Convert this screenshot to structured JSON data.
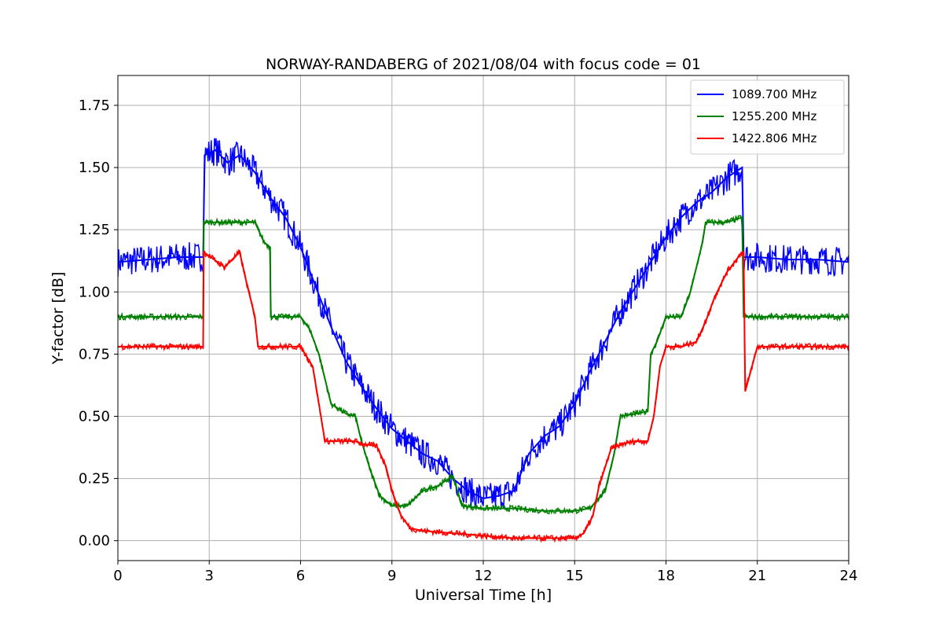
{
  "chart_data": {
    "type": "line",
    "title": "NORWAY-RANDABERG of 2021/08/04 with focus code = 01",
    "xlabel": "Universal Time [h]",
    "ylabel": "Y-factor [dB]",
    "xlim": [
      0,
      24
    ],
    "ylim": [
      -0.08,
      1.87
    ],
    "xticks": [
      0,
      3,
      6,
      9,
      12,
      15,
      18,
      21,
      24
    ],
    "xtick_labels": [
      "0",
      "3",
      "6",
      "9",
      "12",
      "15",
      "18",
      "21",
      "24"
    ],
    "yticks": [
      0.0,
      0.25,
      0.5,
      0.75,
      1.0,
      1.25,
      1.5,
      1.75
    ],
    "ytick_labels": [
      "0.00",
      "0.25",
      "0.50",
      "0.75",
      "1.00",
      "1.25",
      "1.50",
      "1.75"
    ],
    "grid": true,
    "legend_position": "top-right",
    "series": [
      {
        "name": "1089.700 MHz",
        "color": "#0000ff",
        "x": [
          0,
          1,
          2,
          2.8,
          2.85,
          3.2,
          3.6,
          4,
          4.5,
          5,
          5.5,
          6,
          6.5,
          7,
          7.5,
          8,
          8.5,
          9,
          9.5,
          10,
          10.5,
          11,
          11.5,
          12,
          12.5,
          13,
          13.5,
          14,
          14.5,
          15,
          15.5,
          16,
          16.5,
          17,
          17.5,
          18,
          18.5,
          19,
          19.5,
          20,
          20.5,
          20.55,
          21,
          22,
          23,
          24
        ],
        "y": [
          1.12,
          1.13,
          1.14,
          1.14,
          1.55,
          1.57,
          1.52,
          1.55,
          1.48,
          1.38,
          1.3,
          1.18,
          1.02,
          0.86,
          0.72,
          0.62,
          0.53,
          0.45,
          0.4,
          0.35,
          0.32,
          0.25,
          0.2,
          0.17,
          0.18,
          0.2,
          0.35,
          0.42,
          0.46,
          0.55,
          0.68,
          0.8,
          0.92,
          1.02,
          1.12,
          1.22,
          1.3,
          1.36,
          1.4,
          1.46,
          1.5,
          1.14,
          1.14,
          1.13,
          1.13,
          1.12
        ]
      },
      {
        "name": "1255.200 MHz",
        "color": "#008000",
        "x": [
          0,
          2.8,
          2.82,
          4.5,
          4.8,
          5.0,
          5.02,
          6.0,
          6.3,
          6.6,
          7.0,
          7.5,
          7.8,
          8.0,
          8.3,
          8.6,
          9.0,
          9.5,
          10.0,
          10.5,
          11.0,
          11.3,
          12.0,
          13.0,
          14.0,
          15.0,
          15.5,
          16.0,
          16.3,
          16.5,
          17.0,
          17.4,
          17.5,
          17.7,
          18.0,
          18.5,
          18.8,
          19.0,
          19.2,
          19.3,
          20.0,
          20.5,
          20.55,
          21,
          24
        ],
        "y": [
          0.9,
          0.9,
          1.28,
          1.28,
          1.2,
          1.18,
          0.9,
          0.9,
          0.85,
          0.75,
          0.55,
          0.51,
          0.5,
          0.4,
          0.28,
          0.18,
          0.14,
          0.14,
          0.2,
          0.22,
          0.26,
          0.14,
          0.13,
          0.13,
          0.12,
          0.12,
          0.13,
          0.2,
          0.35,
          0.5,
          0.51,
          0.52,
          0.75,
          0.8,
          0.9,
          0.9,
          1.0,
          1.1,
          1.2,
          1.28,
          1.28,
          1.3,
          0.9,
          0.9,
          0.9
        ]
      },
      {
        "name": "1422.806 MHz",
        "color": "#ff0000",
        "x": [
          0,
          2.8,
          2.82,
          3.5,
          4.0,
          4.2,
          4.5,
          4.6,
          5.0,
          6.0,
          6.4,
          6.6,
          6.8,
          7.2,
          7.8,
          8.0,
          8.5,
          8.8,
          9.0,
          9.3,
          9.6,
          10.0,
          11.0,
          12.0,
          13.0,
          14.0,
          15.0,
          15.3,
          15.6,
          15.8,
          16.2,
          16.6,
          17.0,
          17.4,
          17.6,
          17.8,
          18.0,
          18.5,
          19.0,
          19.3,
          19.6,
          20.0,
          20.5,
          20.55,
          20.6,
          21,
          24
        ],
        "y": [
          0.78,
          0.78,
          1.16,
          1.1,
          1.16,
          1.05,
          0.9,
          0.78,
          0.78,
          0.78,
          0.7,
          0.55,
          0.4,
          0.4,
          0.4,
          0.39,
          0.38,
          0.3,
          0.2,
          0.1,
          0.05,
          0.04,
          0.03,
          0.02,
          0.01,
          0.01,
          0.01,
          0.03,
          0.1,
          0.22,
          0.37,
          0.39,
          0.4,
          0.4,
          0.5,
          0.7,
          0.78,
          0.78,
          0.8,
          0.88,
          0.98,
          1.08,
          1.16,
          1.16,
          0.6,
          0.78,
          0.78
        ]
      }
    ]
  }
}
